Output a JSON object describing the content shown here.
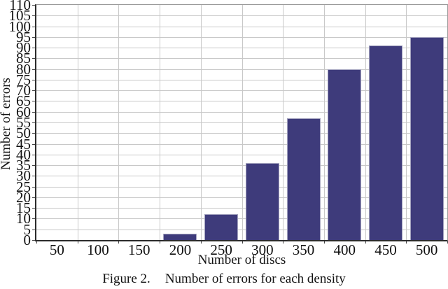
{
  "figure": {
    "caption_label": "Figure 2.",
    "caption_text": "Number of errors for each density"
  },
  "chart_data": {
    "type": "bar",
    "title": "",
    "xlabel": "Number of discs",
    "ylabel": "Number of errors",
    "categories": [
      "50",
      "100",
      "150",
      "200",
      "250",
      "300",
      "350",
      "400",
      "450",
      "500"
    ],
    "values": [
      0,
      0,
      0,
      3,
      12,
      36,
      57,
      80,
      91,
      95
    ],
    "ylim": [
      0,
      110
    ],
    "ytick_step": 5,
    "grid": true,
    "legend": "none",
    "colors": {
      "bar_fill": "#3E3B7B",
      "bar_border": "#A3A2BE",
      "grid_line": "#C8C8C8",
      "axis_line": "#2B2B2B",
      "tick_mark": "#444444",
      "frame_line": "#9A9A9A",
      "text": "#111111",
      "background": "#FFFFFF"
    }
  }
}
